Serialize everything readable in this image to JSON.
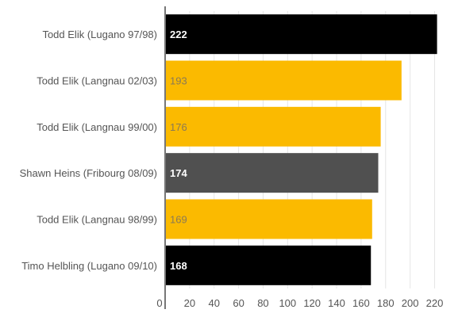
{
  "chart_data": {
    "type": "bar",
    "orientation": "horizontal",
    "title": "",
    "xlabel": "",
    "ylabel": "",
    "grid": true,
    "legend": "none",
    "xlim": [
      0,
      232
    ],
    "xticks": [
      "0",
      "20",
      "40",
      "60",
      "80",
      "100",
      "120",
      "140",
      "160",
      "180",
      "200",
      "220"
    ],
    "bars": [
      {
        "category": "Todd Elik (Lugano 97/98)",
        "value": 222,
        "label": "222",
        "color": "#000000",
        "label_color": "#ffffff"
      },
      {
        "category": "Todd Elik (Langnau 02/03)",
        "value": 193,
        "label": "193",
        "color": "#FBBA00",
        "label_color": "#8a7a55"
      },
      {
        "category": "Todd Elik (Langnau 99/00)",
        "value": 176,
        "label": "176",
        "color": "#FBBA00",
        "label_color": "#8a7a55"
      },
      {
        "category": "Shawn Heins (Fribourg 08/09)",
        "value": 174,
        "label": "174",
        "color": "#505050",
        "label_color": "#ffffff"
      },
      {
        "category": "Todd Elik (Langnau 98/99)",
        "value": 169,
        "label": "169",
        "color": "#FBBA00",
        "label_color": "#8a7a55"
      },
      {
        "category": "Timo Helbling (Lugano 09/10)",
        "value": 168,
        "label": "168",
        "color": "#000000",
        "label_color": "#ffffff"
      }
    ],
    "colors": {
      "axis": "#777777",
      "grid": "#e6e6e6",
      "text": "#555555"
    }
  }
}
